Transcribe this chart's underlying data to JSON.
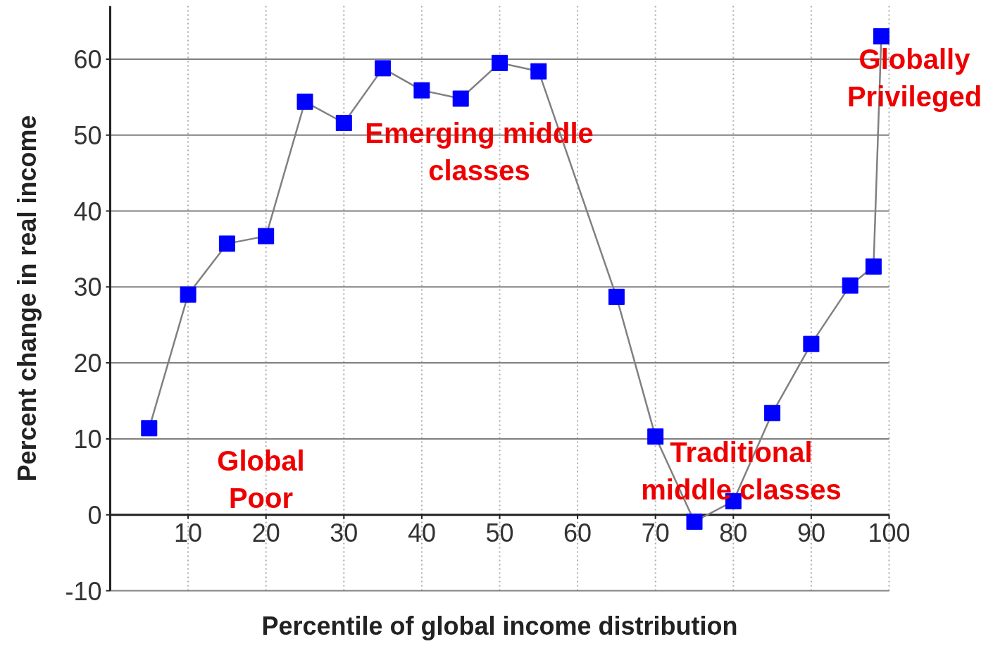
{
  "chart_data": {
    "type": "line",
    "xlabel": "Percentile of global income distribution",
    "ylabel": "Percent change in real income",
    "series": [
      {
        "color": "#0000ff",
        "x": [
          5,
          10,
          15,
          20,
          25,
          30,
          35,
          40,
          45,
          50,
          55,
          65,
          70,
          75,
          80,
          85,
          90,
          95,
          98,
          99
        ],
        "values": [
          11.4,
          29.0,
          35.7,
          36.7,
          54.4,
          51.6,
          58.8,
          55.9,
          54.8,
          59.5,
          58.4,
          28.7,
          10.3,
          -0.9,
          1.8,
          13.4,
          22.5,
          30.2,
          32.7,
          63.0
        ]
      }
    ],
    "xlim": [
      0,
      100
    ],
    "ylim": [
      -10,
      67
    ],
    "xticks": [
      10,
      20,
      30,
      40,
      50,
      60,
      70,
      80,
      90,
      100
    ],
    "yticks": [
      -10,
      0,
      10,
      20,
      30,
      40,
      50,
      60
    ],
    "grid": true,
    "marker": "square",
    "line_style": "solid",
    "annotations": [
      "Global\nPoor",
      "Emerging middle\nclasses",
      "Traditional\nmiddle classes",
      "Globally\nPrivileged"
    ]
  }
}
